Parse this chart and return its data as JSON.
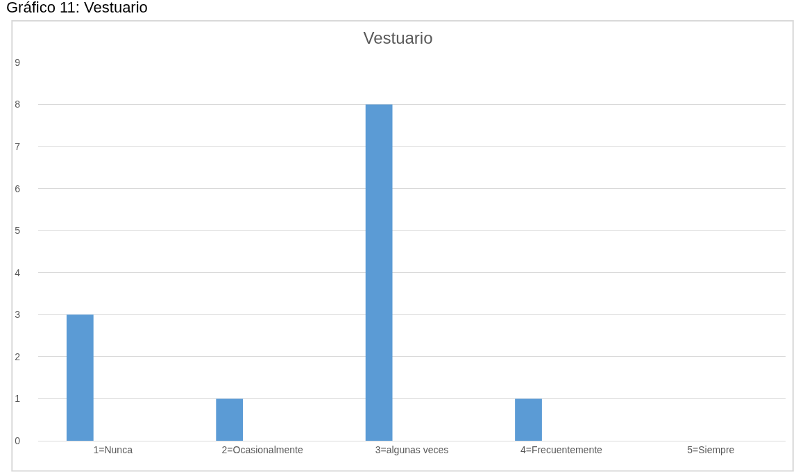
{
  "chart_data": {
    "type": "bar",
    "title": "Vestuario",
    "annotations": [
      "Gráfico 11: Vestuario"
    ],
    "categories": [
      "1=Nunca",
      "2=Ocasionalmente",
      "3=algunas veces",
      "4=Frecuentemente",
      "5=Siempre"
    ],
    "values": [
      3,
      1,
      8,
      1,
      0
    ],
    "color": "#5b9bd5",
    "ylim": [
      0,
      9
    ],
    "yticks": [
      0,
      1,
      2,
      3,
      4,
      5,
      6,
      7,
      8,
      9
    ],
    "grid": "y"
  }
}
